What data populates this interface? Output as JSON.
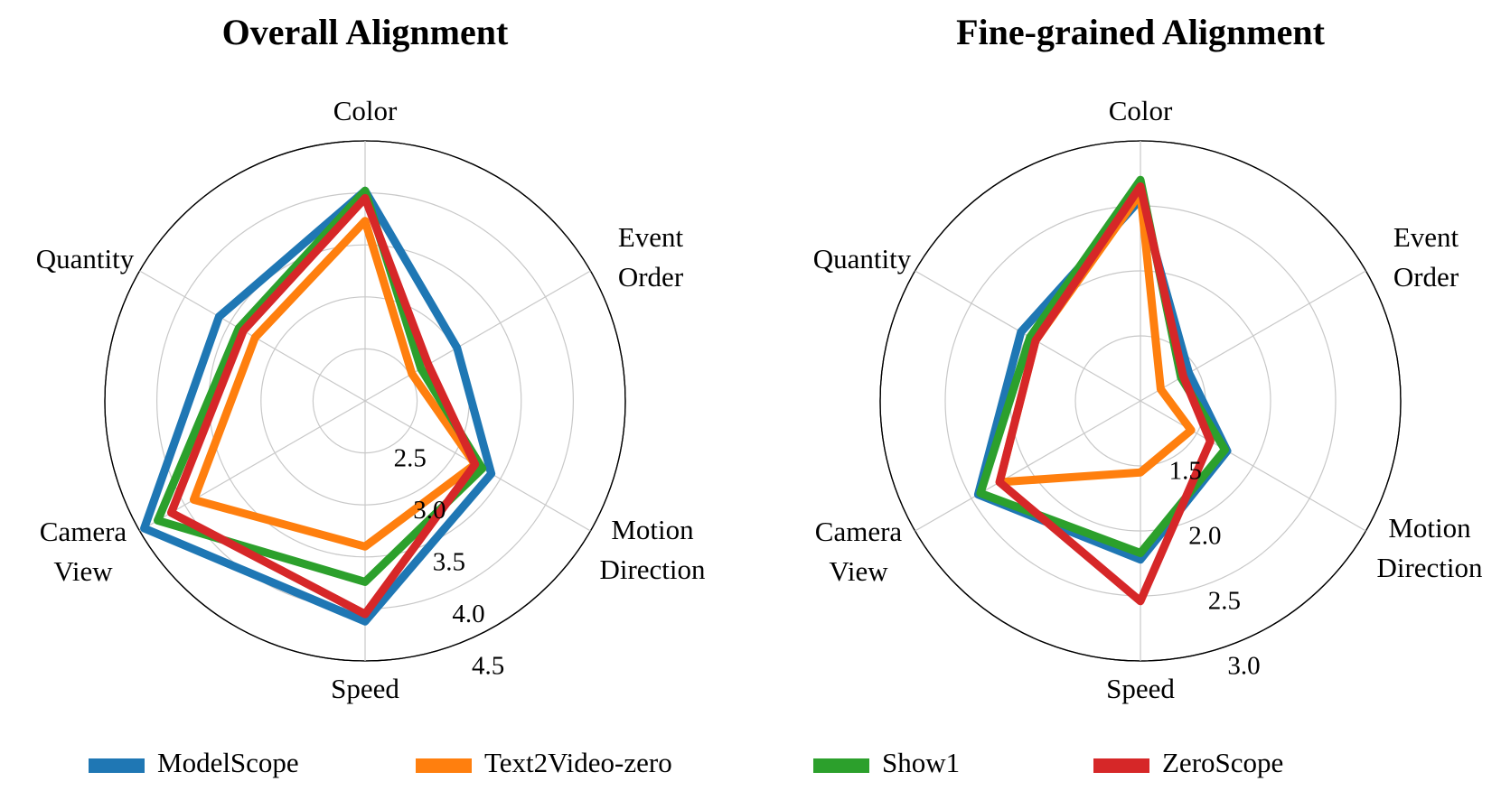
{
  "chart_data": [
    {
      "type": "radar",
      "title": "Overall Alignment",
      "axes": [
        "Color",
        "Event Order",
        "Motion Direction",
        "Speed",
        "Camera View",
        "Quantity"
      ],
      "rlim": [
        2.0,
        4.5
      ],
      "rticks": [
        2.5,
        3.0,
        3.5,
        4.0,
        4.5
      ],
      "rtick_labels": [
        "2.5",
        "3.0",
        "3.5",
        "4.0",
        "4.5"
      ],
      "grid": true,
      "series": [
        {
          "name": "ModelScope",
          "color": "#1f77b4",
          "values": [
            4.02,
            3.02,
            3.4,
            4.12,
            4.45,
            3.62
          ]
        },
        {
          "name": "Text2Video-zero",
          "color": "#ff7f0e",
          "values": [
            3.73,
            2.52,
            3.22,
            3.4,
            3.9,
            3.22
          ]
        },
        {
          "name": "Show1",
          "color": "#2ca02c",
          "values": [
            4.02,
            2.62,
            3.3,
            3.74,
            4.3,
            3.4
          ]
        },
        {
          "name": "ZeroScope",
          "color": "#d62728",
          "values": [
            3.95,
            2.7,
            3.22,
            4.05,
            4.15,
            3.35
          ]
        }
      ]
    },
    {
      "type": "radar",
      "title": "Fine-grained Alignment",
      "axes": [
        "Color",
        "Event Order",
        "Motion Direction",
        "Speed",
        "Camera View",
        "Quantity"
      ],
      "rlim": [
        1.0,
        3.0
      ],
      "rticks": [
        1.5,
        2.0,
        2.5,
        3.0
      ],
      "rtick_labels": [
        "1.5",
        "2.0",
        "2.5",
        "3.0"
      ],
      "grid": true,
      "series": [
        {
          "name": "ModelScope",
          "color": "#1f77b4",
          "values": [
            2.55,
            1.43,
            1.77,
            2.22,
            2.44,
            2.06
          ]
        },
        {
          "name": "Text2Video-zero",
          "color": "#ff7f0e",
          "values": [
            2.6,
            1.18,
            1.45,
            1.55,
            2.25,
            1.93
          ]
        },
        {
          "name": "Show1",
          "color": "#2ca02c",
          "values": [
            2.7,
            1.36,
            1.75,
            2.17,
            2.42,
            1.98
          ]
        },
        {
          "name": "ZeroScope",
          "color": "#d62728",
          "values": [
            2.65,
            1.38,
            1.62,
            2.54,
            2.25,
            1.93
          ]
        }
      ]
    }
  ],
  "legend": {
    "placement": "bottom",
    "entries": [
      {
        "name": "ModelScope",
        "color": "#1f77b4"
      },
      {
        "name": "Text2Video-zero",
        "color": "#ff7f0e"
      },
      {
        "name": "Show1",
        "color": "#2ca02c"
      },
      {
        "name": "ZeroScope",
        "color": "#d62728"
      }
    ]
  }
}
